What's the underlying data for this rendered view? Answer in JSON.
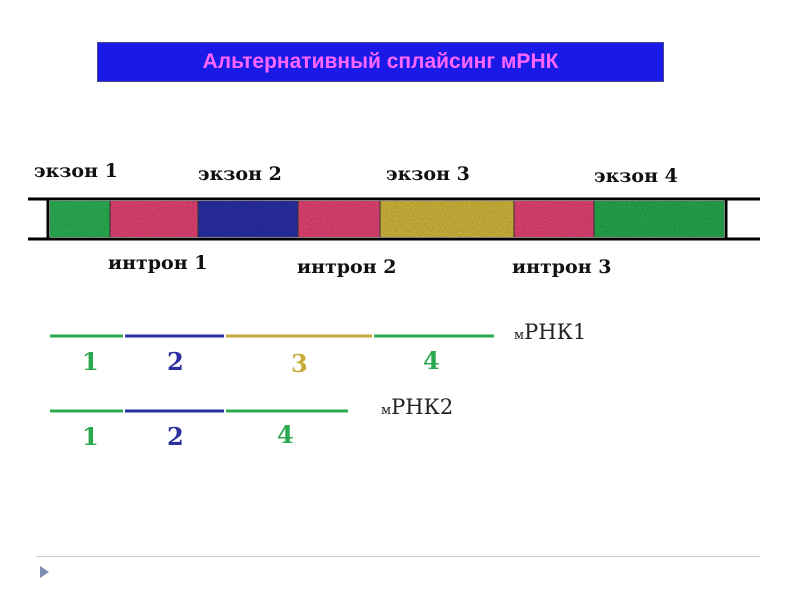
{
  "title": "Альтернативный сплайсинг мРНК",
  "exon_labels": [
    "экзон 1",
    "экзон 2",
    "экзон 3",
    "экзон 4"
  ],
  "intron_labels": [
    "интрон 1",
    "интрон 2",
    "интрон 3"
  ],
  "colors": {
    "exon1": "#2ca850",
    "intron": "#d8406e",
    "exon2": "#2b2f9e",
    "exon3": "#c8ac3a",
    "exon4": "#28a04a",
    "title_bg": "#1a1ae6",
    "title_text": "#ff66ff"
  },
  "mrna1": {
    "prefix": "м",
    "name": "РНК1",
    "segments": [
      "1",
      "2",
      "3",
      "4"
    ]
  },
  "mrna2": {
    "prefix": "м",
    "name": "РНК2",
    "segments": [
      "1",
      "2",
      "4"
    ]
  },
  "nav": {
    "icon": "triangle-right-icon"
  }
}
